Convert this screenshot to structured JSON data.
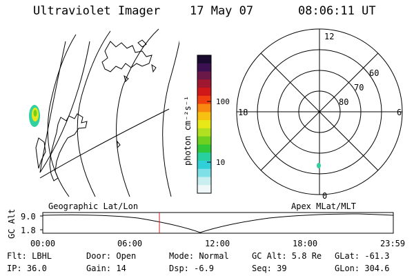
{
  "header": {
    "instrument": "Ultraviolet Imager",
    "date": "17 May 07",
    "time": "08:06:11 UT"
  },
  "colorbar": {
    "unit_label": "photon cm⁻²s⁻¹",
    "tick_labels": [
      "100",
      "10"
    ],
    "colors": [
      "#1a0a30",
      "#3a1050",
      "#6a1848",
      "#a01830",
      "#d01818",
      "#f04010",
      "#f88810",
      "#f8c010",
      "#e8e818",
      "#b0e020",
      "#70d020",
      "#30c838",
      "#28d0a0",
      "#30d0d8",
      "#80e0e8",
      "#c8eef0",
      "#eef8f8"
    ]
  },
  "left_map": {
    "title": "Geographic Lat/Lon"
  },
  "polar_plot": {
    "title": "Apex MLat/MLT",
    "mlt_labels": {
      "top": "12",
      "bottom": "0",
      "left": "18",
      "right": "6"
    },
    "lat_labels": [
      "60",
      "70",
      "80"
    ]
  },
  "altitude_strip": {
    "ylabel": "GC Alt",
    "y_ticks": [
      "9.0",
      "1.8"
    ],
    "x_ticks": [
      "00:00",
      "06:00",
      "12:00",
      "18:00",
      "23:59"
    ],
    "accent": "#d01818"
  },
  "info": {
    "flt": "Flt: LBHL",
    "ip": "IP: 36.0",
    "door": "Door: Open",
    "gain": "Gain: 14",
    "mode": "Mode: Normal",
    "dsp": "Dsp:    -6.9",
    "gcalt": "GC Alt: 5.8 Re",
    "seq": "Seq: 39",
    "glat": "GLat: -61.3",
    "glon": "GLon: 304.6"
  }
}
